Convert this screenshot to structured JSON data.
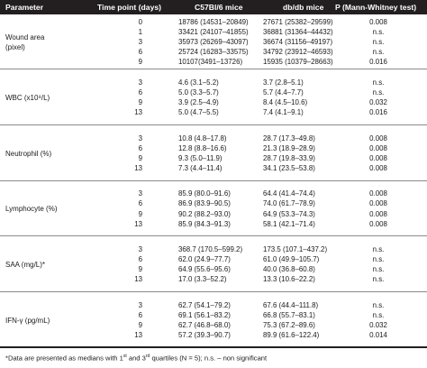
{
  "header": {
    "parameter": "Parameter",
    "time_point": "Time point (days)",
    "c57": "C57Bl/6 mice",
    "db": "db/db mice",
    "p": "P (Mann-Whitney test)"
  },
  "groups": [
    {
      "label_lines": [
        "Wound area",
        "(pixel)"
      ],
      "rows": [
        {
          "tp": "0",
          "c57": "18786 (14531–20849)",
          "db": "27671 (25382–29599)",
          "p": "0.008"
        },
        {
          "tp": "1",
          "c57": "33421 (24107–41855)",
          "db": "36881 (31364–44432)",
          "p": "n.s."
        },
        {
          "tp": "3",
          "c57": "35973 (26269–43097)",
          "db": "36674 (31156–49197)",
          "p": "n.s."
        },
        {
          "tp": "6",
          "c57": "25724 (16283–33575)",
          "db": "34792 (23912–46593)",
          "p": "n.s."
        },
        {
          "tp": "9",
          "c57": "10107(3491–13726)",
          "db": "15935 (10379–28663)",
          "p": "0.016"
        }
      ]
    },
    {
      "label_lines": [
        "WBC (x10⁹/L)"
      ],
      "rows": [
        {
          "tp": "3",
          "c57": "4.6 (3.1–5.2)",
          "db": "3.7 (2.8–5.1)",
          "p": "n.s."
        },
        {
          "tp": "6",
          "c57": "5.0 (3.3–5.7)",
          "db": "5.7 (4.4–7.7)",
          "p": "n.s."
        },
        {
          "tp": "9",
          "c57": "3.9 (2.5–4.9)",
          "db": "8.4 (4.5–10.6)",
          "p": "0.032"
        },
        {
          "tp": "13",
          "c57": "5.0 (4.7–5.5)",
          "db": "7.4 (4.1–9.1)",
          "p": "0.016"
        }
      ]
    },
    {
      "label_lines": [
        "Neutrophil (%)"
      ],
      "rows": [
        {
          "tp": "3",
          "c57": "10.8 (4.8–17.8)",
          "db": "28.7 (17.3–49.8)",
          "p": "0.008"
        },
        {
          "tp": "6",
          "c57": "12.8 (8.8–16.6)",
          "db": "21.3 (18.9–28.9)",
          "p": "0.008"
        },
        {
          "tp": "9",
          "c57": "9.3 (5.0–11.9)",
          "db": "28.7 (19.8–33.9)",
          "p": "0.008"
        },
        {
          "tp": "13",
          "c57": "7.3 (4.4–11.4)",
          "db": "34.1 (23.5–53.8)",
          "p": "0.008"
        }
      ]
    },
    {
      "label_lines": [
        "Lymphocyte (%)"
      ],
      "rows": [
        {
          "tp": "3",
          "c57": "85.9 (80.0–91.6)",
          "db": "64.4 (41.4–74.4)",
          "p": "0.008"
        },
        {
          "tp": "6",
          "c57": "86.9 (83.9–90.5)",
          "db": "74.0 (61.7–78.9)",
          "p": "0.008"
        },
        {
          "tp": "9",
          "c57": "90.2 (88.2–93.0)",
          "db": "64.9 (53.3–74.3)",
          "p": "0.008"
        },
        {
          "tp": "13",
          "c57": "85.9 (84.3–91.3)",
          "db": "58.1 (42.1–71.4)",
          "p": "0.008"
        }
      ]
    },
    {
      "label_lines": [
        "SAA (mg/L)*"
      ],
      "rows": [
        {
          "tp": "3",
          "c57": "368.7 (170.5–599.2)",
          "db": "173.5 (107.1–437.2)",
          "p": "n.s."
        },
        {
          "tp": "6",
          "c57": "62.0 (24.9–77.7)",
          "db": "61.0 (49.9–105.7)",
          "p": "n.s."
        },
        {
          "tp": "9",
          "c57": "64.9 (55.6–95.6)",
          "db": "40.0 (36.8–60.8)",
          "p": "n.s."
        },
        {
          "tp": "13",
          "c57": "17.0 (3.3–52.2)",
          "db": "13.3 (10.6–22.2)",
          "p": "n.s."
        }
      ]
    },
    {
      "label_lines": [
        "IFN-γ (pg/mL)"
      ],
      "rows": [
        {
          "tp": "3",
          "c57": "62.7 (54.1–79.2)",
          "db": "67.6 (44.4–111.8)",
          "p": "n.s."
        },
        {
          "tp": "6",
          "c57": "69.1 (56.1–83.2)",
          "db": "66.8 (55.7–83.1)",
          "p": "n.s."
        },
        {
          "tp": "9",
          "c57": "62.7 (46.8–68.0)",
          "db": "75.3 (67.2–89.6)",
          "p": "0.032"
        },
        {
          "tp": "13",
          "c57": "57.2 (39.3–90.7)",
          "db": "89.9 (61.6–122.4)",
          "p": "0.014"
        }
      ]
    }
  ],
  "footnote": "*Data are presented as medians with 1st and 3rd quartiles (N = 5); n.s. – non significant"
}
